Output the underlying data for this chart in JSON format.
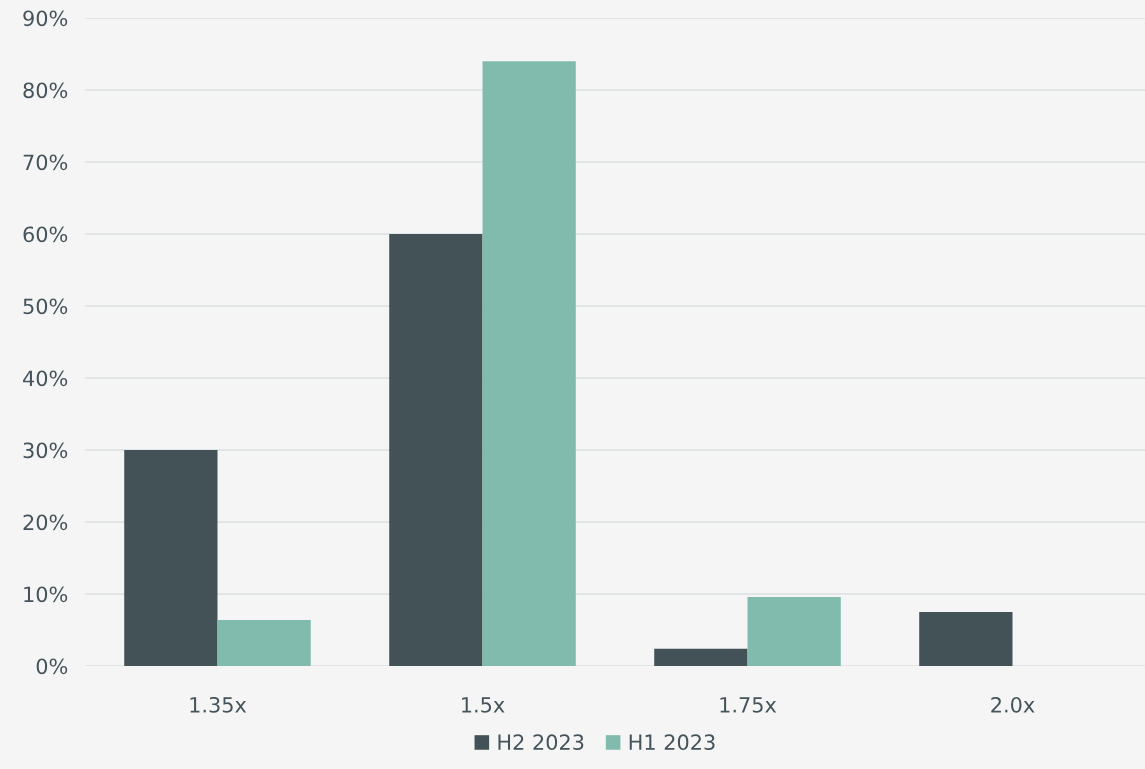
{
  "chart_data": {
    "type": "bar",
    "categories": [
      "1.35x",
      "1.5x",
      "1.75x",
      "2.0x"
    ],
    "series": [
      {
        "name": "H2 2023",
        "color": "#435256",
        "values": [
          30,
          60,
          2.4,
          7.5
        ]
      },
      {
        "name": "H1 2023",
        "color": "#81bbad",
        "values": [
          6.4,
          84,
          9.6,
          null
        ]
      }
    ],
    "ylim": [
      0,
      90
    ],
    "yticks": [
      {
        "value": 0,
        "label": "0%"
      },
      {
        "value": 10,
        "label": "10%"
      },
      {
        "value": 20,
        "label": "20%"
      },
      {
        "value": 30,
        "label": "30%"
      },
      {
        "value": 40,
        "label": "40%"
      },
      {
        "value": 50,
        "label": "50%"
      },
      {
        "value": 60,
        "label": "60%"
      },
      {
        "value": 70,
        "label": "70%"
      },
      {
        "value": 80,
        "label": "80%"
      },
      {
        "value": 90,
        "label": "90%"
      }
    ],
    "grid": "y",
    "legend": "bottom"
  }
}
